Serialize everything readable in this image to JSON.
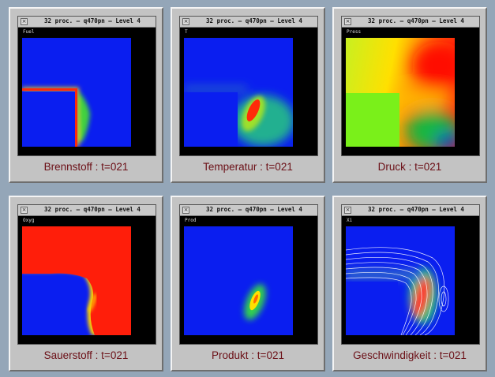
{
  "window_title": "32 proc. – q470pn  – Level 4",
  "close_glyph": "×",
  "panels": [
    {
      "variable": "Fuel",
      "caption": "Brennstoff : t=021"
    },
    {
      "variable": "T",
      "caption": "Temperatur : t=021"
    },
    {
      "variable": "Press",
      "caption": "Druck : t=021"
    },
    {
      "variable": "Oxyg",
      "caption": "Sauerstoff : t=021"
    },
    {
      "variable": "Prod",
      "caption": "Produkt : t=021"
    },
    {
      "variable": "Xi",
      "caption": "Geschwindigkeit : t=021"
    }
  ],
  "colors": {
    "background": "#94a6b8",
    "caption": "#6b0f16",
    "field_low": "#0a1ef0",
    "field_high": "#ff0a0a"
  }
}
